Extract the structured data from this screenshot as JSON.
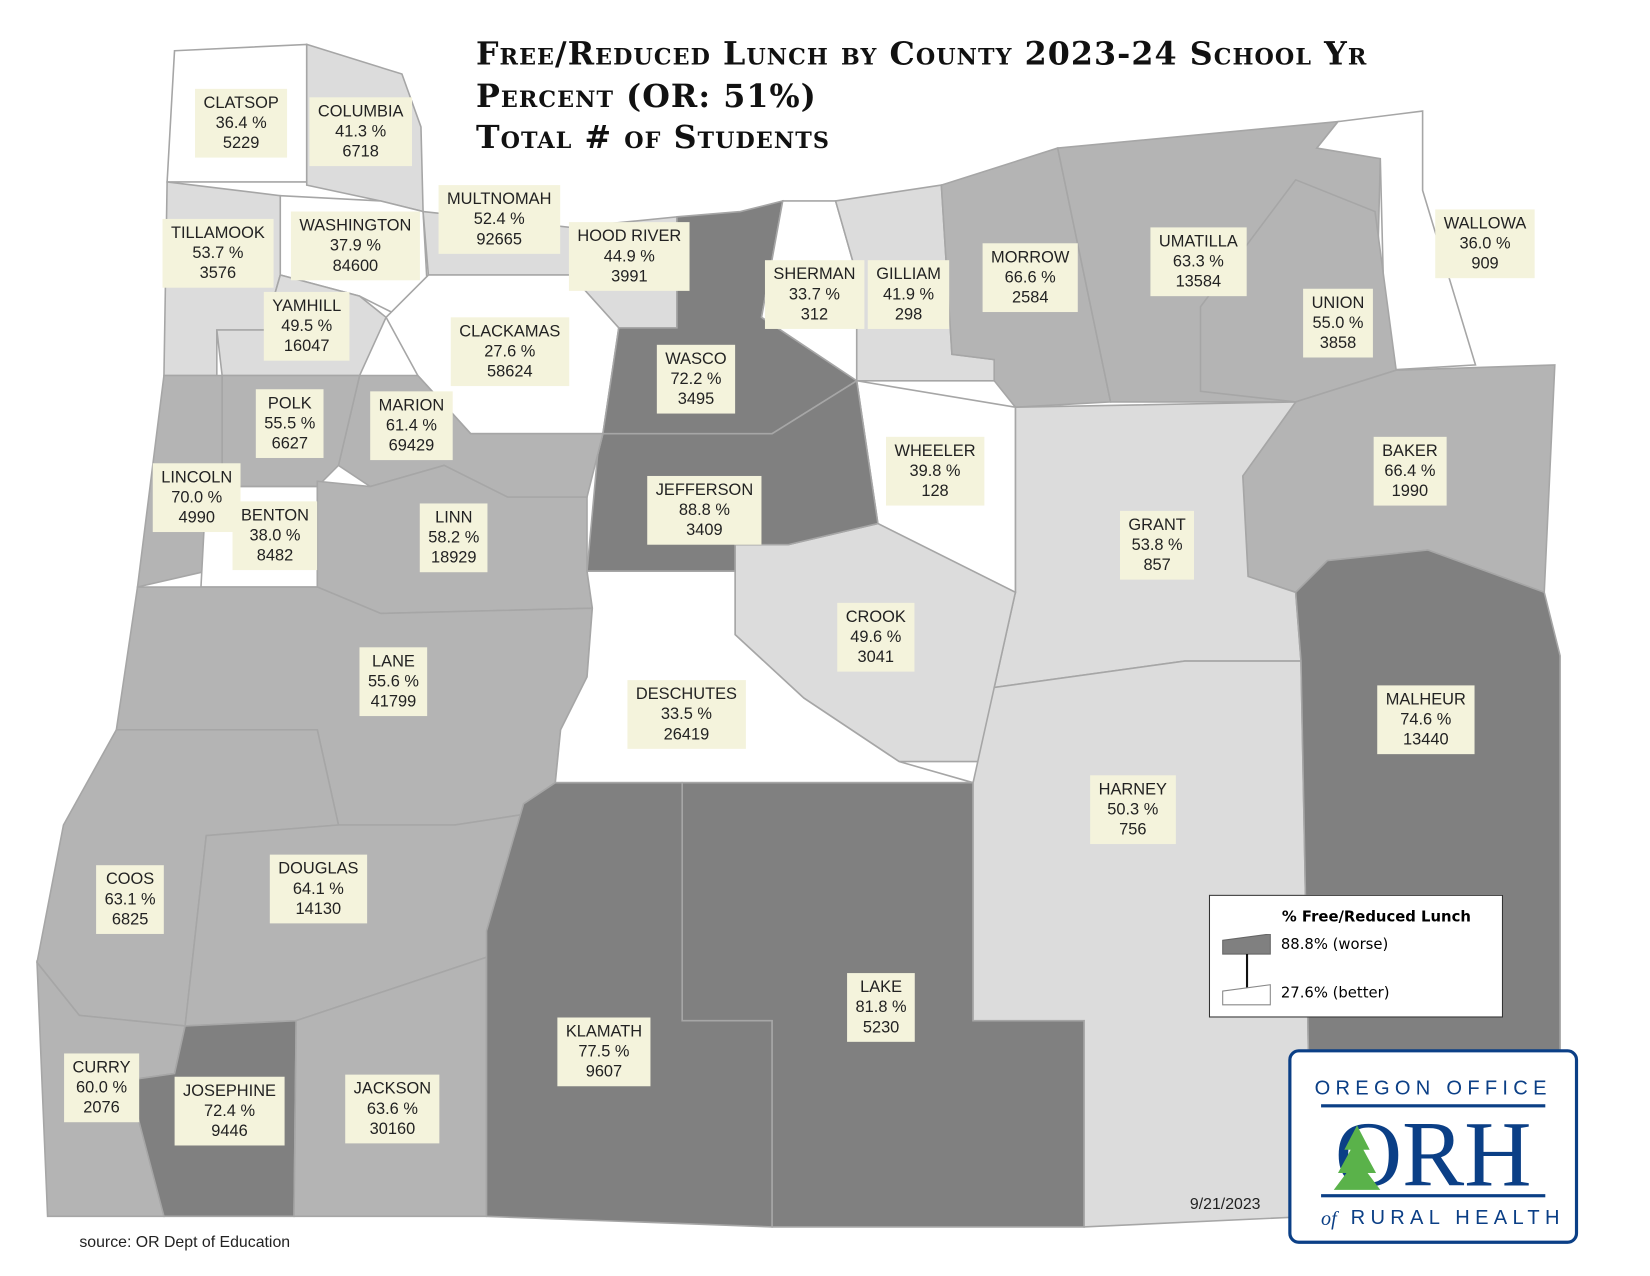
{
  "title": {
    "line1": "Free/Reduced Lunch by County 2023-24 School Yr",
    "line2": "Percent  (OR: 51%)",
    "line3": "Total # of Students"
  },
  "shades": {
    "dark": "#808080",
    "mid": "#b4b4b4",
    "light": "#dcdcdc",
    "white": "#ffffff",
    "border": "#a6a6a6"
  },
  "counties": [
    {
      "name": "CLATSOP",
      "pct": "36.4 %",
      "students": "5229",
      "shade": "white"
    },
    {
      "name": "COLUMBIA",
      "pct": "41.3 %",
      "students": "6718",
      "shade": "light"
    },
    {
      "name": "TILLAMOOK",
      "pct": "53.7 %",
      "students": "3576",
      "shade": "light"
    },
    {
      "name": "WASHINGTON",
      "pct": "37.9 %",
      "students": "84600",
      "shade": "white"
    },
    {
      "name": "MULTNOMAH",
      "pct": "52.4 %",
      "students": "92665",
      "shade": "light"
    },
    {
      "name": "YAMHILL",
      "pct": "49.5 %",
      "students": "16047",
      "shade": "light"
    },
    {
      "name": "HOOD RIVER",
      "pct": "44.9 %",
      "students": "3991",
      "shade": "light"
    },
    {
      "name": "CLACKAMAS",
      "pct": "27.6 %",
      "students": "58624",
      "shade": "white"
    },
    {
      "name": "WASCO",
      "pct": "72.2 %",
      "students": "3495",
      "shade": "dark"
    },
    {
      "name": "SHERMAN",
      "pct": "33.7 %",
      "students": "312",
      "shade": "white"
    },
    {
      "name": "GILLIAM",
      "pct": "41.9 %",
      "students": "298",
      "shade": "light"
    },
    {
      "name": "MORROW",
      "pct": "66.6 %",
      "students": "2584",
      "shade": "mid"
    },
    {
      "name": "UMATILLA",
      "pct": "63.3 %",
      "students": "13584",
      "shade": "mid"
    },
    {
      "name": "WALLOWA",
      "pct": "36.0 %",
      "students": "909",
      "shade": "white"
    },
    {
      "name": "UNION",
      "pct": "55.0 %",
      "students": "3858",
      "shade": "mid"
    },
    {
      "name": "BAKER",
      "pct": "66.4 %",
      "students": "1990",
      "shade": "mid"
    },
    {
      "name": "GRANT",
      "pct": "53.8 %",
      "students": "857",
      "shade": "light"
    },
    {
      "name": "WHEELER",
      "pct": "39.8 %",
      "students": "128",
      "shade": "white"
    },
    {
      "name": "CROOK",
      "pct": "49.6 %",
      "students": "3041",
      "shade": "light"
    },
    {
      "name": "JEFFERSON",
      "pct": "88.8 %",
      "students": "3409",
      "shade": "dark"
    },
    {
      "name": "MARION",
      "pct": "61.4 %",
      "students": "69429",
      "shade": "mid"
    },
    {
      "name": "POLK",
      "pct": "55.5 %",
      "students": "6627",
      "shade": "mid"
    },
    {
      "name": "LINCOLN",
      "pct": "70.0 %",
      "students": "4990",
      "shade": "mid"
    },
    {
      "name": "BENTON",
      "pct": "38.0 %",
      "students": "8482",
      "shade": "white"
    },
    {
      "name": "LINN",
      "pct": "58.2 %",
      "students": "18929",
      "shade": "mid"
    },
    {
      "name": "LANE",
      "pct": "55.6 %",
      "students": "41799",
      "shade": "mid"
    },
    {
      "name": "COOS",
      "pct": "63.1 %",
      "students": "6825",
      "shade": "mid"
    },
    {
      "name": "DOUGLAS",
      "pct": "64.1 %",
      "students": "14130",
      "shade": "mid"
    },
    {
      "name": "DESCHUTES",
      "pct": "33.5 %",
      "students": "26419",
      "shade": "white"
    },
    {
      "name": "CURRY",
      "pct": "60.0 %",
      "students": "2076",
      "shade": "mid"
    },
    {
      "name": "JOSEPHINE",
      "pct": "72.4 %",
      "students": "9446",
      "shade": "dark"
    },
    {
      "name": "JACKSON",
      "pct": "63.6 %",
      "students": "30160",
      "shade": "mid"
    },
    {
      "name": "KLAMATH",
      "pct": "77.5 %",
      "students": "9607",
      "shade": "dark"
    },
    {
      "name": "LAKE",
      "pct": "81.8 %",
      "students": "5230",
      "shade": "dark"
    },
    {
      "name": "HARNEY",
      "pct": "50.3 %",
      "students": "756",
      "shade": "light"
    },
    {
      "name": "MALHEUR",
      "pct": "74.6 %",
      "students": "13440",
      "shade": "dark"
    }
  ],
  "legend": {
    "title": "% Free/Reduced Lunch",
    "high": "88.8% (worse)",
    "low": "27.6% (better)"
  },
  "source": "source: OR Dept of Education",
  "date": "9/21/2023",
  "logo": {
    "top": "OREGON OFFICE",
    "mark": "ORH",
    "bottom_of": "of",
    "bottom": "RURAL HEALTH",
    "color": "#0b3f86",
    "tree": "#5ab24a"
  }
}
